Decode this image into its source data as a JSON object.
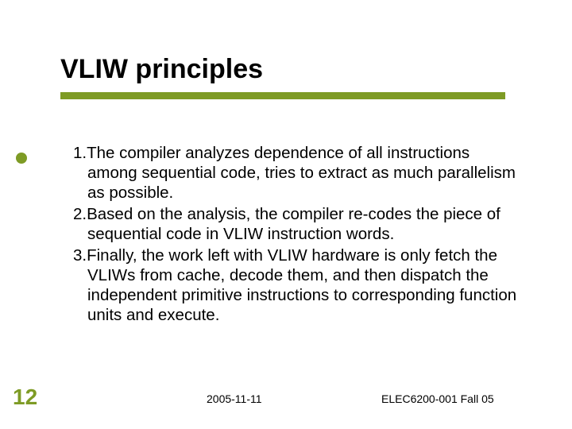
{
  "colors": {
    "accent": "#7e9b25",
    "text": "#000000",
    "bg": "#ffffff"
  },
  "title": "VLIW principles",
  "items": [
    "1.The compiler analyzes dependence of all instructions among sequential code, tries to extract as much parallelism as possible.",
    "2.Based on the analysis, the compiler re-codes the piece of sequential code in VLIW instruction words.",
    "3.Finally, the work left with VLIW hardware is only fetch the VLIWs from cache, decode them, and then dispatch the independent primitive instructions to corresponding function units and execute."
  ],
  "footer": {
    "page": "12",
    "date": "2005-11-11",
    "course": "ELEC6200-001 Fall 05"
  },
  "style": {
    "title_fontsize": 34,
    "body_fontsize": 20.5,
    "footer_fontsize": 14,
    "pagenum_fontsize": 28,
    "underline_width": 560,
    "underline_height": 9,
    "dot_diameter": 14
  }
}
